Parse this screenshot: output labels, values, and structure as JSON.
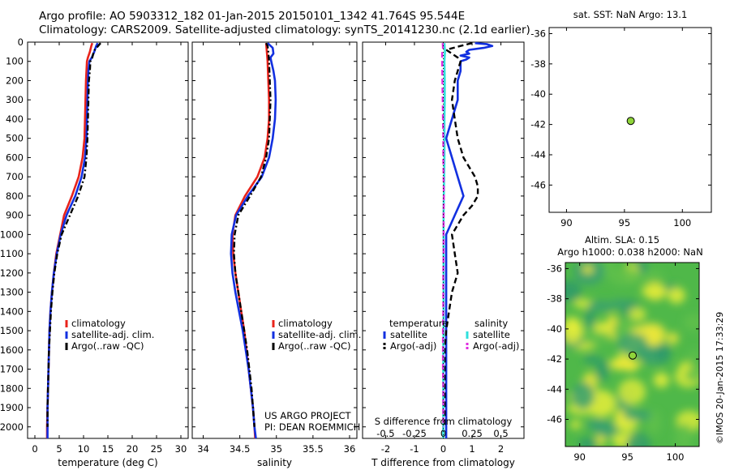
{
  "header": {
    "line1": "Argo profile: AO 5903312_182 01-Jan-2015 20150101_1342 41.764S 95.544E",
    "line2": "Climatology: CARS2009. Satellite-adjusted climatology: synTS_20141230.nc (2.1d earlier)"
  },
  "credits": {
    "project": "US ARGO PROJECT",
    "pi": "PI: DEAN ROEMMICH",
    "watermark": "©IMOS 20-Jan-2015 17:33:29"
  },
  "colors": {
    "climatology": "#e8231b",
    "satellite": "#1230e0",
    "argo": "#000000",
    "sal_sat": "#2fe0dc",
    "sal_argo": "#e02ee0",
    "map_bg": "#4fb849",
    "float_marker": "#8fd43a"
  },
  "y_axis": {
    "ticks": [
      0,
      100,
      200,
      300,
      400,
      500,
      600,
      700,
      800,
      900,
      1000,
      1100,
      1200,
      1300,
      1400,
      1500,
      1600,
      1700,
      1800,
      1900,
      2000
    ],
    "lim": [
      0,
      2060
    ],
    "reversed": true
  },
  "chart_data": [
    {
      "type": "line",
      "xlabel": "temperature (deg C)",
      "xlim": [
        -1.5,
        31.5
      ],
      "xticks": [
        0,
        5,
        10,
        15,
        20,
        25,
        30
      ],
      "legend": {
        "placement": "lower-middle",
        "entries": [
          "climatology",
          "satellite-adj. clim.",
          "Argo(..raw -QC)"
        ]
      },
      "series": [
        {
          "name": "climatology",
          "color_key": "climatology",
          "style": "solid",
          "depth": [
            5,
            20,
            50,
            80,
            100,
            150,
            200,
            300,
            400,
            500,
            600,
            700,
            800,
            900,
            1000,
            1100,
            1200,
            1300,
            1400,
            1500,
            1600,
            1700,
            1800,
            1900,
            2000,
            2060
          ],
          "values": [
            11.8,
            11.6,
            11.3,
            10.9,
            10.7,
            10.6,
            10.5,
            10.4,
            10.3,
            10.2,
            9.8,
            9.0,
            7.6,
            6.0,
            5.2,
            4.4,
            3.9,
            3.5,
            3.2,
            3.0,
            2.9,
            2.8,
            2.7,
            2.6,
            2.5,
            2.5
          ]
        },
        {
          "name": "satellite-adj. clim.",
          "color_key": "satellite",
          "style": "solid",
          "depth": [
            5,
            20,
            50,
            80,
            100,
            150,
            200,
            300,
            400,
            500,
            600,
            700,
            800,
            900,
            1000,
            1100,
            1200,
            1300,
            1400,
            1500,
            1600,
            1700,
            1800,
            1900,
            2000,
            2060
          ],
          "values": [
            12.9,
            12.6,
            12.2,
            11.7,
            11.2,
            11.0,
            10.9,
            10.8,
            10.7,
            10.6,
            10.3,
            9.6,
            8.3,
            6.5,
            5.3,
            4.5,
            3.9,
            3.5,
            3.2,
            3.0,
            2.9,
            2.8,
            2.7,
            2.6,
            2.6,
            2.6
          ]
        },
        {
          "name": "Argo(..raw -QC)",
          "color_key": "argo",
          "style": "dashdot",
          "depth": [
            5,
            20,
            40,
            60,
            80,
            100,
            150,
            200,
            300,
            400,
            500,
            600,
            700,
            800,
            900,
            1000,
            1100,
            1200,
            1300,
            1400,
            1500,
            1600,
            1700,
            1800,
            1900,
            2000
          ],
          "values": [
            13.5,
            13.0,
            12.3,
            12.0,
            11.8,
            11.4,
            11.3,
            11.1,
            11.0,
            10.9,
            10.8,
            10.6,
            10.2,
            8.9,
            7.2,
            5.5,
            4.6,
            4.0,
            3.6,
            3.3,
            3.1,
            2.9,
            2.8,
            2.7,
            2.6,
            2.6
          ]
        }
      ]
    },
    {
      "type": "line",
      "xlabel": "salinity",
      "xlim": [
        33.85,
        36.1
      ],
      "xticks": [
        34,
        34.5,
        35,
        35.5,
        36
      ],
      "xticklabels": [
        "34",
        "34.5",
        "35",
        "35.5",
        "36"
      ],
      "legend": {
        "placement": "lower-right",
        "entries": [
          "climatology",
          "satellite-adj. clim.",
          "Argo(..raw -QC)"
        ]
      },
      "series": [
        {
          "name": "climatology",
          "color_key": "climatology",
          "style": "solid",
          "depth": [
            5,
            50,
            100,
            200,
            300,
            400,
            500,
            600,
            700,
            800,
            900,
            1000,
            1100,
            1200,
            1300,
            1400,
            1500,
            1600,
            1700,
            1800,
            1900,
            2000,
            2060
          ],
          "values": [
            34.86,
            34.87,
            34.88,
            34.89,
            34.9,
            34.9,
            34.88,
            34.84,
            34.74,
            34.57,
            34.44,
            34.4,
            34.41,
            34.44,
            34.48,
            34.52,
            34.56,
            34.59,
            34.62,
            34.65,
            34.68,
            34.7,
            34.71
          ]
        },
        {
          "name": "satellite-adj. clim.",
          "color_key": "satellite",
          "style": "solid",
          "depth": [
            5,
            30,
            60,
            80,
            100,
            150,
            200,
            300,
            400,
            500,
            600,
            700,
            800,
            900,
            1000,
            1100,
            1200,
            1300,
            1400,
            1500,
            1600,
            1700,
            1800,
            1900,
            2000,
            2060
          ],
          "values": [
            34.88,
            34.95,
            34.96,
            34.92,
            34.93,
            34.96,
            34.98,
            34.99,
            34.98,
            34.95,
            34.9,
            34.8,
            34.61,
            34.45,
            34.39,
            34.38,
            34.4,
            34.44,
            34.49,
            34.54,
            34.58,
            34.62,
            34.65,
            34.68,
            34.7,
            34.72
          ]
        },
        {
          "name": "Argo(..raw -QC)",
          "color_key": "argo",
          "style": "dashdot",
          "depth": [
            5,
            20,
            50,
            100,
            200,
            300,
            400,
            500,
            600,
            700,
            800,
            900,
            1000,
            1100,
            1200,
            1300,
            1400,
            1500,
            1600,
            1700,
            1800,
            1900,
            2000
          ],
          "values": [
            34.86,
            34.88,
            34.89,
            34.9,
            34.91,
            34.92,
            34.91,
            34.9,
            34.86,
            34.79,
            34.64,
            34.48,
            34.43,
            34.42,
            34.44,
            34.48,
            34.52,
            34.56,
            34.6,
            34.63,
            34.66,
            34.68,
            34.7
          ]
        }
      ]
    },
    {
      "type": "line",
      "xlabel": "T difference from climatology",
      "xlim": [
        -2.8,
        2.8
      ],
      "xticks": [
        -2,
        -1,
        0,
        1,
        2
      ],
      "top_axis": {
        "label": "S difference from climatology",
        "ticks": [
          -0.5,
          -0.25,
          0,
          0.25,
          0.5
        ],
        "ticklabels": [
          "-0.5",
          "-0.25",
          "0",
          "0.25",
          "0.5"
        ],
        "scale": 4
      },
      "legend": {
        "placement": "lower-middle",
        "groups": [
          {
            "title": "temperature",
            "entries": [
              "satellite",
              "Argo(-adj)"
            ]
          },
          {
            "title": "salinity",
            "entries": [
              "satellite",
              "Argo(-adj)"
            ]
          }
        ]
      },
      "series": [
        {
          "name": "satellite",
          "group": "temperature",
          "color_key": "satellite",
          "style": "solid",
          "depth": [
            5,
            10,
            20,
            30,
            40,
            50,
            60,
            70,
            80,
            90,
            100,
            150,
            200,
            300,
            400,
            500,
            600,
            700,
            800,
            900,
            1000,
            1100,
            1200,
            1300,
            1400,
            1500,
            1600,
            1700,
            1800,
            1900,
            2000,
            2060
          ],
          "values": [
            1.1,
            1.5,
            1.7,
            1.4,
            0.9,
            0.8,
            0.9,
            0.6,
            0.9,
            0.8,
            0.6,
            0.6,
            0.5,
            0.5,
            0.3,
            0.1,
            0.3,
            0.5,
            0.7,
            0.4,
            0.1,
            0.1,
            0.1,
            0.1,
            0.1,
            0.1,
            0.1,
            0.1,
            0.1,
            0.1,
            0.1,
            0.1
          ]
        },
        {
          "name": "Argo(-adj)",
          "group": "temperature",
          "color_key": "argo",
          "style": "dashed",
          "depth": [
            5,
            20,
            40,
            60,
            80,
            100,
            150,
            200,
            300,
            400,
            500,
            600,
            650,
            700,
            750,
            800,
            850,
            900,
            950,
            1000,
            1100,
            1200,
            1300,
            1400,
            1500,
            1600,
            1700,
            1800,
            1900,
            2000
          ],
          "values": [
            1.0,
            0.6,
            0.1,
            0.3,
            0.5,
            0.6,
            0.5,
            0.4,
            0.3,
            0.4,
            0.5,
            0.7,
            0.9,
            1.1,
            1.2,
            1.2,
            1.0,
            0.7,
            0.5,
            0.3,
            0.4,
            0.5,
            0.3,
            0.2,
            0.1,
            0.05,
            0.05,
            0.05,
            0.05,
            0.05
          ]
        },
        {
          "name": "satellite",
          "group": "salinity",
          "color_key": "sal_sat",
          "style": "solid",
          "depth": [
            5,
            50,
            100,
            200,
            300,
            400,
            500,
            600,
            700,
            800,
            900,
            1000,
            1100,
            1200,
            1300,
            1400,
            1500,
            1600,
            1700,
            1800,
            1900,
            2000,
            2060
          ],
          "values": [
            0.04,
            0.06,
            0.04,
            0.05,
            0.05,
            0.04,
            0.04,
            0.04,
            0.03,
            0.02,
            0.01,
            0.01,
            0.01,
            0.01,
            0.01,
            0.01,
            0.01,
            0.0,
            0.0,
            0.0,
            0.0,
            0.0,
            0.0
          ]
        },
        {
          "name": "Argo(-adj)",
          "group": "salinity",
          "color_key": "sal_argo",
          "style": "dashed",
          "depth": [
            5,
            30,
            60,
            100,
            200,
            300,
            400,
            500,
            600,
            700,
            800,
            900,
            1000,
            1100,
            1200,
            1300,
            1400,
            1500,
            1600,
            1700,
            1800,
            1900,
            2000
          ],
          "values": [
            -0.02,
            -0.01,
            -0.04,
            -0.04,
            -0.03,
            -0.02,
            -0.01,
            0.0,
            0.0,
            0.01,
            0.02,
            0.01,
            0.01,
            0.01,
            0.0,
            0.0,
            0.0,
            -0.01,
            -0.01,
            -0.01,
            0.0,
            0.0,
            0.0
          ]
        }
      ]
    },
    {
      "type": "scatter",
      "title": "sat. SST: NaN Argo: 13.1",
      "xlim": [
        88.5,
        102.5
      ],
      "ylim": [
        -47.8,
        -35.6
      ],
      "xticks": [
        90,
        95,
        100
      ],
      "yticks": [
        -36,
        -38,
        -40,
        -42,
        -44,
        -46
      ],
      "points": [
        {
          "lon": 95.544,
          "lat": -41.764
        }
      ]
    },
    {
      "type": "heatmap",
      "title_line1": "Altim. SLA: 0.15",
      "title_line2": "Argo h1000: 0.038 h2000: NaN",
      "xlim": [
        88.5,
        102.5
      ],
      "ylim": [
        -47.8,
        -35.6
      ],
      "xticks": [
        90,
        95,
        100
      ],
      "yticks": [
        -36,
        -38,
        -40,
        -42,
        -44,
        -46
      ],
      "points": [
        {
          "lon": 95.544,
          "lat": -41.764
        }
      ]
    }
  ]
}
